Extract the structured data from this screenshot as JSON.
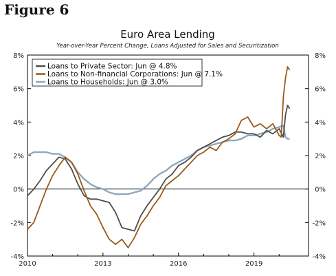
{
  "figure_label": "Figure 6",
  "chart_data": {
    "type": "line",
    "title": "Euro Area Lending",
    "subtitle": "Year-over-Year Percent Change, Loans Adjusted for Sales and Securitization",
    "xlabel": "",
    "ylabel": "",
    "x_ticks": [
      "2010",
      "2013",
      "2016",
      "2019"
    ],
    "y_ticks_left": [
      "8%",
      "6%",
      "4%",
      "2%",
      "0%",
      "-2%",
      "-4%"
    ],
    "y_ticks_right": [
      "8%",
      "6%",
      "4%",
      "2%",
      "0%",
      "-2%",
      "-4%"
    ],
    "xlim": [
      "2010-01",
      "2021-03"
    ],
    "ylim": [
      -4,
      8
    ],
    "grid": false,
    "legend_position": "top-left",
    "series": [
      {
        "name": "Loans to Private Sector: Jun @ 4.8%",
        "color": "#4d4d4d",
        "points": [
          [
            "2010-01",
            -0.4
          ],
          [
            "2010-04",
            0.0
          ],
          [
            "2010-07",
            0.5
          ],
          [
            "2010-10",
            1.1
          ],
          [
            "2011-01",
            1.5
          ],
          [
            "2011-04",
            1.9
          ],
          [
            "2011-07",
            1.8
          ],
          [
            "2011-10",
            1.2
          ],
          [
            "2012-01",
            0.3
          ],
          [
            "2012-04",
            -0.4
          ],
          [
            "2012-07",
            -0.6
          ],
          [
            "2012-10",
            -0.6
          ],
          [
            "2013-01",
            -0.7
          ],
          [
            "2013-04",
            -0.8
          ],
          [
            "2013-07",
            -1.4
          ],
          [
            "2013-10",
            -2.3
          ],
          [
            "2014-01",
            -2.4
          ],
          [
            "2014-04",
            -2.5
          ],
          [
            "2014-07",
            -1.6
          ],
          [
            "2014-10",
            -1.0
          ],
          [
            "2015-01",
            -0.5
          ],
          [
            "2015-04",
            0.0
          ],
          [
            "2015-07",
            0.6
          ],
          [
            "2015-10",
            0.9
          ],
          [
            "2016-01",
            1.4
          ],
          [
            "2016-04",
            1.6
          ],
          [
            "2016-07",
            1.9
          ],
          [
            "2016-10",
            2.3
          ],
          [
            "2017-01",
            2.5
          ],
          [
            "2017-04",
            2.7
          ],
          [
            "2017-07",
            2.9
          ],
          [
            "2017-10",
            3.1
          ],
          [
            "2018-01",
            3.2
          ],
          [
            "2018-04",
            3.4
          ],
          [
            "2018-07",
            3.4
          ],
          [
            "2018-10",
            3.3
          ],
          [
            "2019-01",
            3.3
          ],
          [
            "2019-04",
            3.1
          ],
          [
            "2019-07",
            3.5
          ],
          [
            "2019-10",
            3.3
          ],
          [
            "2020-01",
            3.6
          ],
          [
            "2020-03",
            3.1
          ],
          [
            "2020-04",
            4.4
          ],
          [
            "2020-05",
            5.0
          ],
          [
            "2020-06",
            4.8
          ]
        ]
      },
      {
        "name": "Loans to Non-financial Corporations: Jun @ 7.1%",
        "color": "#9a5a14",
        "points": [
          [
            "2010-01",
            -2.4
          ],
          [
            "2010-04",
            -2.0
          ],
          [
            "2010-07",
            -1.0
          ],
          [
            "2010-10",
            0.0
          ],
          [
            "2011-01",
            0.8
          ],
          [
            "2011-04",
            1.4
          ],
          [
            "2011-07",
            1.9
          ],
          [
            "2011-10",
            1.6
          ],
          [
            "2012-01",
            0.9
          ],
          [
            "2012-04",
            -0.1
          ],
          [
            "2012-07",
            -1.0
          ],
          [
            "2012-10",
            -1.5
          ],
          [
            "2013-01",
            -2.3
          ],
          [
            "2013-04",
            -3.0
          ],
          [
            "2013-07",
            -3.3
          ],
          [
            "2013-10",
            -3.0
          ],
          [
            "2014-01",
            -3.5
          ],
          [
            "2014-04",
            -2.9
          ],
          [
            "2014-07",
            -2.1
          ],
          [
            "2014-10",
            -1.6
          ],
          [
            "2015-01",
            -1.0
          ],
          [
            "2015-04",
            -0.5
          ],
          [
            "2015-07",
            0.2
          ],
          [
            "2015-10",
            0.5
          ],
          [
            "2016-01",
            0.8
          ],
          [
            "2016-04",
            1.2
          ],
          [
            "2016-07",
            1.6
          ],
          [
            "2016-10",
            2.0
          ],
          [
            "2017-01",
            2.2
          ],
          [
            "2017-04",
            2.5
          ],
          [
            "2017-07",
            2.3
          ],
          [
            "2017-10",
            2.8
          ],
          [
            "2018-01",
            3.0
          ],
          [
            "2018-04",
            3.3
          ],
          [
            "2018-07",
            4.1
          ],
          [
            "2018-10",
            4.3
          ],
          [
            "2019-01",
            3.7
          ],
          [
            "2019-04",
            3.9
          ],
          [
            "2019-07",
            3.6
          ],
          [
            "2019-10",
            3.9
          ],
          [
            "2020-01",
            3.2
          ],
          [
            "2020-02",
            3.1
          ],
          [
            "2020-03",
            5.5
          ],
          [
            "2020-04",
            6.6
          ],
          [
            "2020-05",
            7.3
          ],
          [
            "2020-06",
            7.1
          ]
        ]
      },
      {
        "name": "Loans to Households: Jun @ 3.0%",
        "color": "#8da8bf",
        "points": [
          [
            "2010-01",
            2.0
          ],
          [
            "2010-04",
            2.2
          ],
          [
            "2010-07",
            2.2
          ],
          [
            "2010-10",
            2.2
          ],
          [
            "2011-01",
            2.1
          ],
          [
            "2011-04",
            2.1
          ],
          [
            "2011-07",
            1.9
          ],
          [
            "2011-10",
            1.6
          ],
          [
            "2012-01",
            1.0
          ],
          [
            "2012-04",
            0.6
          ],
          [
            "2012-07",
            0.3
          ],
          [
            "2012-10",
            0.1
          ],
          [
            "2013-01",
            0.0
          ],
          [
            "2013-04",
            -0.2
          ],
          [
            "2013-07",
            -0.3
          ],
          [
            "2013-10",
            -0.3
          ],
          [
            "2014-01",
            -0.3
          ],
          [
            "2014-04",
            -0.2
          ],
          [
            "2014-07",
            -0.1
          ],
          [
            "2014-10",
            0.2
          ],
          [
            "2015-01",
            0.6
          ],
          [
            "2015-04",
            0.9
          ],
          [
            "2015-07",
            1.1
          ],
          [
            "2015-10",
            1.4
          ],
          [
            "2016-01",
            1.6
          ],
          [
            "2016-04",
            1.8
          ],
          [
            "2016-07",
            2.0
          ],
          [
            "2016-10",
            2.3
          ],
          [
            "2017-01",
            2.5
          ],
          [
            "2017-04",
            2.6
          ],
          [
            "2017-07",
            2.7
          ],
          [
            "2017-10",
            2.8
          ],
          [
            "2018-01",
            2.9
          ],
          [
            "2018-04",
            2.9
          ],
          [
            "2018-07",
            3.0
          ],
          [
            "2018-10",
            3.2
          ],
          [
            "2019-01",
            3.2
          ],
          [
            "2019-04",
            3.3
          ],
          [
            "2019-07",
            3.4
          ],
          [
            "2019-10",
            3.6
          ],
          [
            "2020-01",
            3.7
          ],
          [
            "2020-03",
            3.8
          ],
          [
            "2020-04",
            3.1
          ],
          [
            "2020-05",
            3.0
          ],
          [
            "2020-06",
            3.0
          ]
        ]
      }
    ]
  }
}
